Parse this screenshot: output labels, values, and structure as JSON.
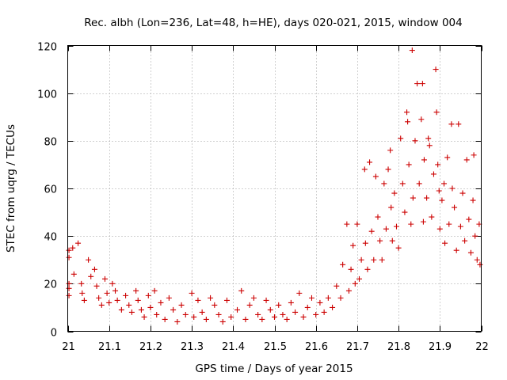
{
  "chart_data": {
    "type": "scatter",
    "title": "Rec. albh (Lon=236, Lat=48, h=HE), days 020-021, 2015, window 004",
    "xlabel": "GPS time / Days of year 2015",
    "ylabel": "STEC from uqrg / TECUs",
    "xlim": [
      21,
      22
    ],
    "ylim": [
      0,
      120
    ],
    "xticks": [
      21,
      21.1,
      21.2,
      21.3,
      21.4,
      21.5,
      21.6,
      21.7,
      21.8,
      21.9,
      22
    ],
    "xtick_labels": [
      "21",
      "21.1",
      "21.2",
      "21.3",
      "21.4",
      "21.5",
      "21.6",
      "21.7",
      "21.8",
      "21.9",
      "22"
    ],
    "yticks": [
      0,
      20,
      40,
      60,
      80,
      100,
      120
    ],
    "ytick_labels": [
      "0",
      "20",
      "40",
      "60",
      "80",
      "100",
      "120"
    ],
    "grid": true,
    "marker": "+",
    "color": "#cc0000",
    "series": [
      {
        "points": [
          [
            21.003,
            34
          ],
          [
            21.003,
            31
          ],
          [
            21.003,
            20
          ],
          [
            21.003,
            18
          ],
          [
            21.003,
            15
          ],
          [
            21.012,
            35
          ],
          [
            21.015,
            24
          ],
          [
            21.025,
            37
          ],
          [
            21.033,
            20
          ],
          [
            21.035,
            16
          ],
          [
            21.04,
            13
          ],
          [
            21.05,
            30
          ],
          [
            21.056,
            23
          ],
          [
            21.065,
            26
          ],
          [
            21.07,
            19
          ],
          [
            21.075,
            14
          ],
          [
            21.082,
            11
          ],
          [
            21.09,
            22
          ],
          [
            21.095,
            16
          ],
          [
            21.1,
            12
          ],
          [
            21.108,
            20
          ],
          [
            21.115,
            17
          ],
          [
            21.12,
            13
          ],
          [
            21.13,
            9
          ],
          [
            21.14,
            15
          ],
          [
            21.148,
            11
          ],
          [
            21.155,
            8
          ],
          [
            21.165,
            17
          ],
          [
            21.17,
            13
          ],
          [
            21.178,
            9
          ],
          [
            21.185,
            6
          ],
          [
            21.195,
            15
          ],
          [
            21.2,
            10
          ],
          [
            21.21,
            17
          ],
          [
            21.215,
            7
          ],
          [
            21.225,
            12
          ],
          [
            21.235,
            5
          ],
          [
            21.245,
            14
          ],
          [
            21.255,
            9
          ],
          [
            21.265,
            4
          ],
          [
            21.275,
            11
          ],
          [
            21.285,
            7
          ],
          [
            21.3,
            16
          ],
          [
            21.305,
            6
          ],
          [
            21.315,
            13
          ],
          [
            21.325,
            8
          ],
          [
            21.335,
            5
          ],
          [
            21.345,
            14
          ],
          [
            21.355,
            11
          ],
          [
            21.365,
            7
          ],
          [
            21.375,
            4
          ],
          [
            21.385,
            13
          ],
          [
            21.395,
            6
          ],
          [
            21.41,
            9
          ],
          [
            21.42,
            17
          ],
          [
            21.43,
            5
          ],
          [
            21.44,
            11
          ],
          [
            21.45,
            14
          ],
          [
            21.46,
            7
          ],
          [
            21.47,
            5
          ],
          [
            21.48,
            13
          ],
          [
            21.49,
            9
          ],
          [
            21.5,
            6
          ],
          [
            21.51,
            11
          ],
          [
            21.52,
            7
          ],
          [
            21.53,
            5
          ],
          [
            21.54,
            12
          ],
          [
            21.55,
            8
          ],
          [
            21.56,
            16
          ],
          [
            21.57,
            6
          ],
          [
            21.58,
            10
          ],
          [
            21.59,
            14
          ],
          [
            21.6,
            7
          ],
          [
            21.61,
            12
          ],
          [
            21.62,
            8
          ],
          [
            21.63,
            14
          ],
          [
            21.64,
            10
          ],
          [
            21.65,
            19
          ],
          [
            21.66,
            14
          ],
          [
            21.665,
            28
          ],
          [
            21.675,
            45
          ],
          [
            21.68,
            17
          ],
          [
            21.685,
            26
          ],
          [
            21.69,
            36
          ],
          [
            21.695,
            20
          ],
          [
            21.7,
            45
          ],
          [
            21.705,
            22
          ],
          [
            21.71,
            30
          ],
          [
            21.718,
            68
          ],
          [
            21.72,
            37
          ],
          [
            21.725,
            26
          ],
          [
            21.73,
            71
          ],
          [
            21.735,
            42
          ],
          [
            21.74,
            30
          ],
          [
            21.745,
            65
          ],
          [
            21.75,
            48
          ],
          [
            21.755,
            38
          ],
          [
            21.76,
            30
          ],
          [
            21.765,
            62
          ],
          [
            21.77,
            43
          ],
          [
            21.775,
            68
          ],
          [
            21.78,
            76
          ],
          [
            21.782,
            52
          ],
          [
            21.785,
            38
          ],
          [
            21.79,
            58
          ],
          [
            21.795,
            44
          ],
          [
            21.8,
            35
          ],
          [
            21.805,
            81
          ],
          [
            21.81,
            62
          ],
          [
            21.815,
            50
          ],
          [
            21.82,
            92
          ],
          [
            21.822,
            88
          ],
          [
            21.825,
            70
          ],
          [
            21.83,
            45
          ],
          [
            21.833,
            118
          ],
          [
            21.835,
            56
          ],
          [
            21.84,
            80
          ],
          [
            21.845,
            104
          ],
          [
            21.85,
            62
          ],
          [
            21.855,
            89
          ],
          [
            21.858,
            104
          ],
          [
            21.86,
            46
          ],
          [
            21.862,
            72
          ],
          [
            21.868,
            56
          ],
          [
            21.872,
            81
          ],
          [
            21.875,
            78
          ],
          [
            21.88,
            48
          ],
          [
            21.885,
            66
          ],
          [
            21.89,
            110
          ],
          [
            21.892,
            92
          ],
          [
            21.895,
            70
          ],
          [
            21.898,
            59
          ],
          [
            21.9,
            43
          ],
          [
            21.905,
            55
          ],
          [
            21.91,
            62
          ],
          [
            21.912,
            37
          ],
          [
            21.918,
            73
          ],
          [
            21.922,
            45
          ],
          [
            21.928,
            87
          ],
          [
            21.93,
            60
          ],
          [
            21.935,
            52
          ],
          [
            21.94,
            34
          ],
          [
            21.945,
            87
          ],
          [
            21.95,
            44
          ],
          [
            21.955,
            58
          ],
          [
            21.96,
            38
          ],
          [
            21.965,
            72
          ],
          [
            21.97,
            47
          ],
          [
            21.975,
            33
          ],
          [
            21.98,
            55
          ],
          [
            21.982,
            74
          ],
          [
            21.985,
            40
          ],
          [
            21.99,
            30
          ],
          [
            21.995,
            45
          ],
          [
            21.997,
            28
          ]
        ]
      }
    ]
  }
}
